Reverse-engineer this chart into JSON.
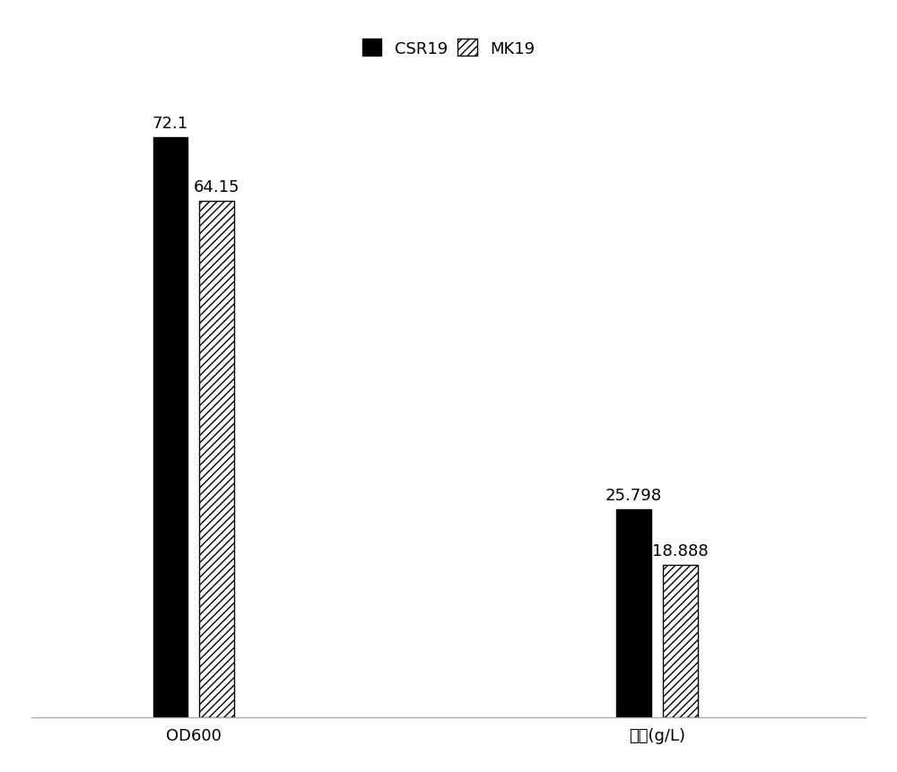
{
  "groups": [
    "OD600",
    "干重(g/L)"
  ],
  "series": [
    {
      "name": "CSR19",
      "values": [
        72.1,
        25.798
      ],
      "color": "#000000",
      "hatch": ""
    },
    {
      "name": "MK19",
      "values": [
        64.15,
        18.888
      ],
      "color": "#ffffff",
      "hatch": "////"
    }
  ],
  "bar_width": 0.15,
  "group_centers": [
    1,
    3
  ],
  "bar_gap": 0.05,
  "xlim": [
    0.3,
    3.9
  ],
  "ylim": [
    0,
    82
  ],
  "legend_fontsize": 13,
  "tick_fontsize": 13,
  "label_fontsize": 13,
  "background_color": "#ffffff",
  "edge_color": "#000000",
  "spine_color": "#aaaaaa"
}
